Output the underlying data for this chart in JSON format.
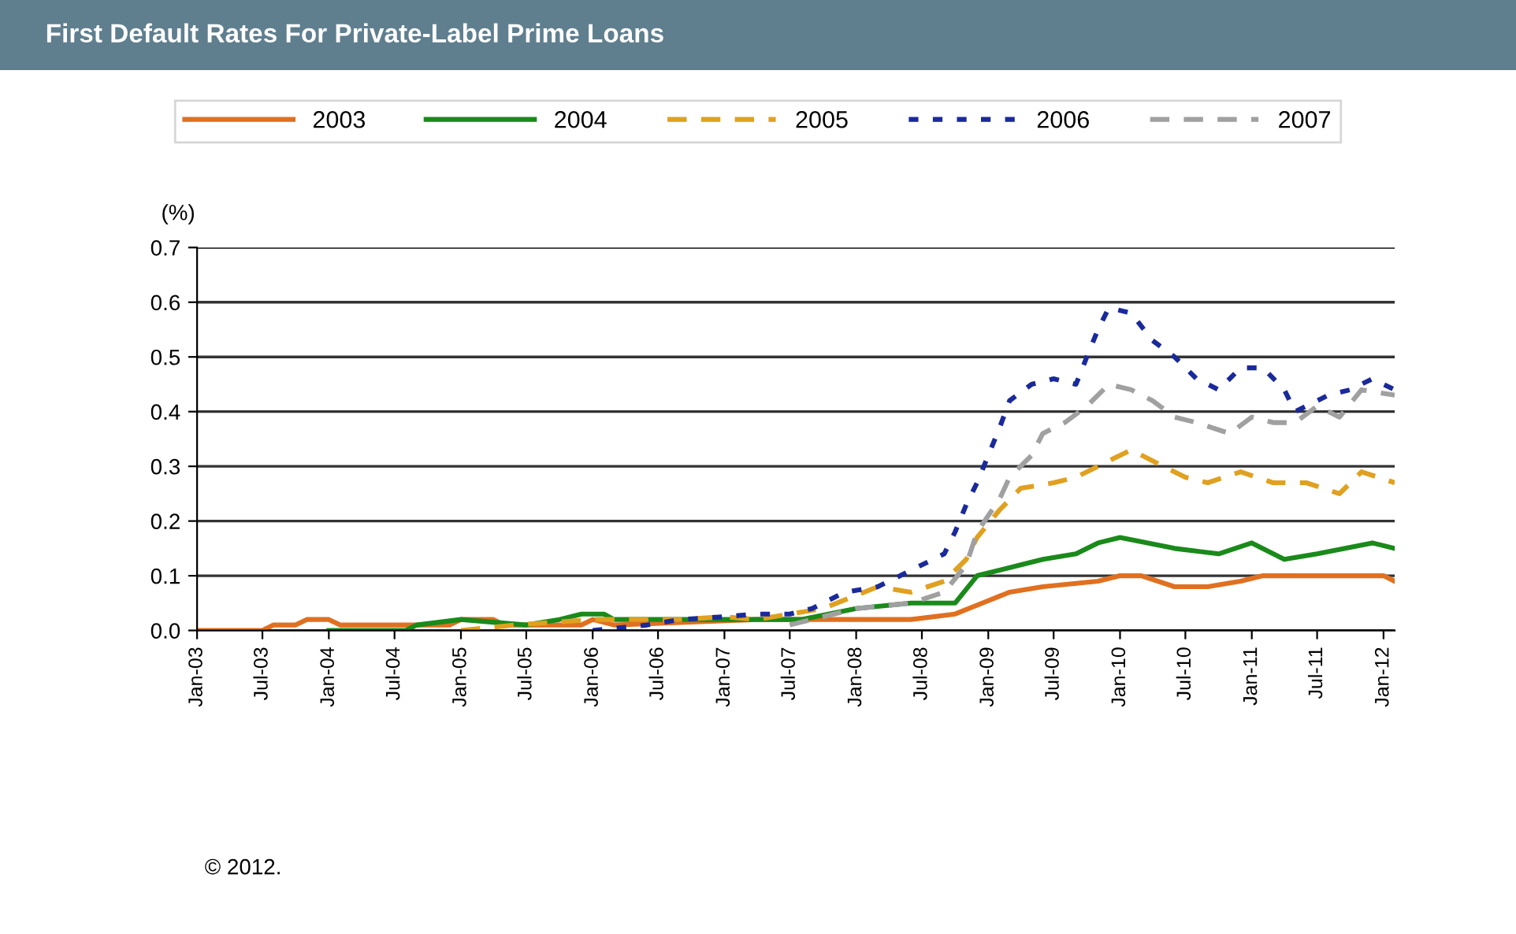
{
  "chart_data": {
    "type": "line",
    "title": "First Default Rates For Private-Label Prime Loans",
    "ylabel": "(%)",
    "annotations": [
      "© 2012."
    ],
    "xlim": [
      "2003-01",
      "2012-02"
    ],
    "ylim": [
      0,
      0.7
    ],
    "xticks": [
      {
        "value": "2003-01",
        "label": "Jan-03"
      },
      {
        "value": "2003-07",
        "label": "Jul-03"
      },
      {
        "value": "2004-01",
        "label": "Jan-04"
      },
      {
        "value": "2004-07",
        "label": "Jul-04"
      },
      {
        "value": "2005-01",
        "label": "Jan-05"
      },
      {
        "value": "2005-07",
        "label": "Jul-05"
      },
      {
        "value": "2006-01",
        "label": "Jan-06"
      },
      {
        "value": "2006-07",
        "label": "Jul-06"
      },
      {
        "value": "2007-01",
        "label": "Jan-07"
      },
      {
        "value": "2007-07",
        "label": "Jul-07"
      },
      {
        "value": "2008-01",
        "label": "Jan-08"
      },
      {
        "value": "2008-07",
        "label": "Jul-08"
      },
      {
        "value": "2009-01",
        "label": "Jan-09"
      },
      {
        "value": "2009-07",
        "label": "Jul-09"
      },
      {
        "value": "2010-01",
        "label": "Jan-10"
      },
      {
        "value": "2010-07",
        "label": "Jul-10"
      },
      {
        "value": "2011-01",
        "label": "Jan-11"
      },
      {
        "value": "2011-07",
        "label": "Jul-11"
      },
      {
        "value": "2012-01",
        "label": "Jan-12"
      }
    ],
    "yticks": [
      {
        "value": 0,
        "label": "0.0"
      },
      0.1,
      0.2,
      0.3,
      0.4,
      0.5,
      0.6,
      0.7
    ],
    "grid": "y",
    "legend": "top",
    "series": [
      {
        "name": "2003",
        "color": "#e07020",
        "line_style": "solid",
        "x": [
          "2003-01",
          "2003-07",
          "2003-08",
          "2003-10",
          "2003-11",
          "2004-01",
          "2004-02",
          "2004-12",
          "2005-01",
          "2005-04",
          "2005-05",
          "2005-12",
          "2006-01",
          "2006-03",
          "2007-04",
          "2008-06",
          "2008-10",
          "2009-03",
          "2009-06",
          "2009-11",
          "2010-01",
          "2010-03",
          "2010-06",
          "2010-09",
          "2010-12",
          "2011-02",
          "2011-08",
          "2012-01",
          "2012-02"
        ],
        "values": [
          0,
          0,
          0.01,
          0.01,
          0.02,
          0.02,
          0.01,
          0.01,
          0.02,
          0.02,
          0.01,
          0.01,
          0.02,
          0.01,
          0.02,
          0.02,
          0.03,
          0.07,
          0.08,
          0.09,
          0.1,
          0.1,
          0.08,
          0.08,
          0.09,
          0.1,
          0.1,
          0.1,
          0.09
        ]
      },
      {
        "name": "2004",
        "color": "#1a8a1a",
        "line_style": "solid",
        "x": [
          "2004-01",
          "2004-08",
          "2004-09",
          "2005-01",
          "2005-04",
          "2005-07",
          "2005-10",
          "2005-12",
          "2006-02",
          "2006-03",
          "2007-04",
          "2007-08",
          "2008-01",
          "2008-06",
          "2008-10",
          "2008-12",
          "2009-04",
          "2009-06",
          "2009-09",
          "2009-11",
          "2010-01",
          "2010-06",
          "2010-10",
          "2011-01",
          "2011-04",
          "2011-07",
          "2011-12",
          "2012-02"
        ],
        "values": [
          0,
          0,
          0.01,
          0.02,
          0.015,
          0.01,
          0.02,
          0.03,
          0.03,
          0.02,
          0.02,
          0.02,
          0.04,
          0.05,
          0.05,
          0.1,
          0.12,
          0.13,
          0.14,
          0.16,
          0.17,
          0.15,
          0.14,
          0.16,
          0.13,
          0.14,
          0.16,
          0.15
        ]
      },
      {
        "name": "2005",
        "color": "#e0a020",
        "line_style": "dashed",
        "x": [
          "2005-01",
          "2005-06",
          "2006-01",
          "2006-09",
          "2007-01",
          "2007-04",
          "2007-10",
          "2008-03",
          "2008-06",
          "2008-09",
          "2008-11",
          "2008-12",
          "2009-02",
          "2009-04",
          "2009-07",
          "2009-09",
          "2009-12",
          "2010-02",
          "2010-05",
          "2010-07",
          "2010-09",
          "2010-12",
          "2011-03",
          "2011-06",
          "2011-09",
          "2011-11",
          "2012-02"
        ],
        "values": [
          0,
          0.01,
          0.02,
          0.02,
          0.025,
          0.02,
          0.04,
          0.08,
          0.07,
          0.09,
          0.13,
          0.17,
          0.22,
          0.26,
          0.27,
          0.28,
          0.31,
          0.33,
          0.3,
          0.28,
          0.27,
          0.29,
          0.27,
          0.27,
          0.25,
          0.29,
          0.27
        ]
      },
      {
        "name": "2006",
        "color": "#1a2a9a",
        "line_style": "dotted",
        "x": [
          "2006-01",
          "2006-06",
          "2006-09",
          "2007-01",
          "2007-04",
          "2007-07",
          "2007-09",
          "2007-12",
          "2008-03",
          "2008-06",
          "2008-09",
          "2008-10",
          "2008-11",
          "2008-12",
          "2009-01",
          "2009-02",
          "2009-03",
          "2009-05",
          "2009-07",
          "2009-09",
          "2009-10",
          "2009-11",
          "2009-12",
          "2010-02",
          "2010-04",
          "2010-06",
          "2010-08",
          "2010-10",
          "2010-12",
          "2011-02",
          "2011-04",
          "2011-05",
          "2011-08",
          "2011-10",
          "2011-12",
          "2012-02"
        ],
        "values": [
          0,
          0.01,
          0.02,
          0.025,
          0.03,
          0.03,
          0.04,
          0.07,
          0.08,
          0.11,
          0.14,
          0.18,
          0.23,
          0.27,
          0.32,
          0.37,
          0.42,
          0.45,
          0.46,
          0.45,
          0.5,
          0.55,
          0.59,
          0.58,
          0.53,
          0.5,
          0.46,
          0.44,
          0.48,
          0.48,
          0.44,
          0.4,
          0.43,
          0.44,
          0.46,
          0.44
        ]
      },
      {
        "name": "2007",
        "color": "#a0a0a0",
        "line_style": "dashed",
        "x": [
          "2007-07",
          "2008-01",
          "2008-06",
          "2008-09",
          "2008-11",
          "2008-12",
          "2009-02",
          "2009-03",
          "2009-05",
          "2009-06",
          "2009-08",
          "2009-10",
          "2009-12",
          "2010-02",
          "2010-04",
          "2010-06",
          "2010-08",
          "2010-11",
          "2011-01",
          "2011-03",
          "2011-05",
          "2011-07",
          "2011-09",
          "2011-11",
          "2012-02"
        ],
        "values": [
          0.01,
          0.04,
          0.05,
          0.07,
          0.12,
          0.18,
          0.24,
          0.28,
          0.32,
          0.36,
          0.38,
          0.41,
          0.45,
          0.44,
          0.42,
          0.39,
          0.38,
          0.36,
          0.39,
          0.38,
          0.38,
          0.41,
          0.39,
          0.44,
          0.43
        ]
      }
    ]
  }
}
